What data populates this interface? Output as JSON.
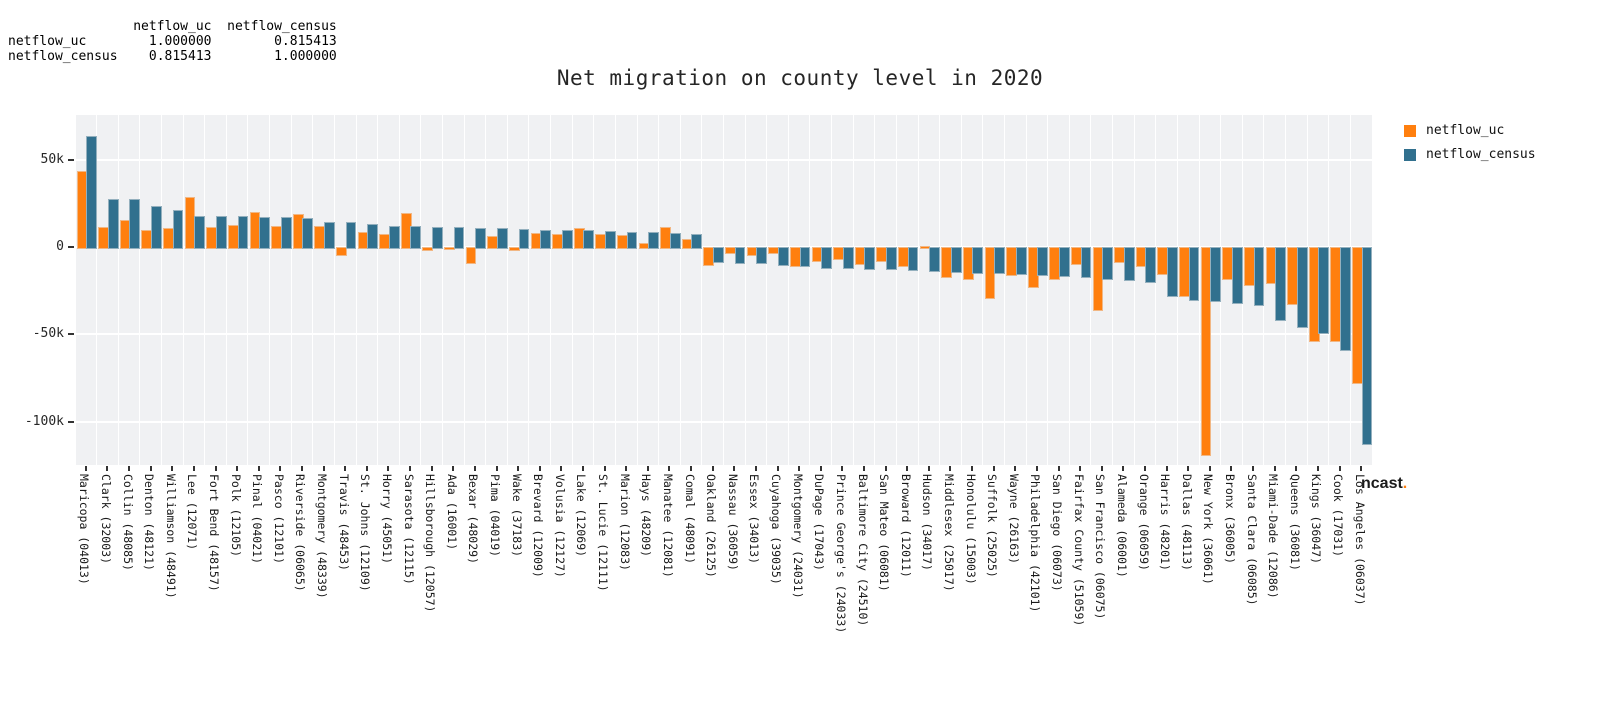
{
  "correlation_table": {
    "corner": "",
    "col_headers": [
      "netflow_uc",
      "netflow_census"
    ],
    "rows": [
      {
        "label": "netflow_uc",
        "values": [
          "1.000000",
          "0.815413"
        ]
      },
      {
        "label": "netflow_census",
        "values": [
          "0.815413",
          "1.000000"
        ]
      }
    ]
  },
  "chart_data": {
    "type": "bar",
    "title": "Net migration on county level in 2020",
    "xlabel": "",
    "ylabel": "",
    "grid": true,
    "legend_position": "upper right",
    "plot_bg": "#f0f1f3",
    "grid_color": "#ffffff",
    "ylim": [
      -125400,
      75900
    ],
    "yticks": [
      {
        "label": "50k",
        "value": 50000
      },
      {
        "label": "0",
        "value": 0
      },
      {
        "label": "-50k",
        "value": -50000
      },
      {
        "label": "-100k",
        "value": -100000
      }
    ],
    "categories": [
      "Maricopa (04013)",
      "Clark (32003)",
      "Collin (48085)",
      "Denton (48121)",
      "Williamson (48491)",
      "Lee (12071)",
      "Fort Bend (48157)",
      "Polk (12105)",
      "Pinal (04021)",
      "Pasco (12101)",
      "Riverside (06065)",
      "Montgomery (48339)",
      "Travis (48453)",
      "St. Johns (12109)",
      "Horry (45051)",
      "Sarasota (12115)",
      "Hillsborough (12057)",
      "Ada (16001)",
      "Bexar (48029)",
      "Pima (04019)",
      "Wake (37183)",
      "Brevard (12009)",
      "Volusia (12127)",
      "Lake (12069)",
      "St. Lucie (12111)",
      "Marion (12083)",
      "Hays (48209)",
      "Manatee (12081)",
      "Comal (48091)",
      "Oakland (26125)",
      "Nassau (36059)",
      "Essex (34013)",
      "Cuyahoga (39035)",
      "Montgomery (24031)",
      "DuPage (17043)",
      "Prince George's (24033)",
      "Baltimore City (24510)",
      "San Mateo (06081)",
      "Broward (12011)",
      "Hudson (34017)",
      "Middlesex (25017)",
      "Honolulu (15003)",
      "Suffolk (25025)",
      "Wayne (26163)",
      "Philadelphia (42101)",
      "San Diego (06073)",
      "Fairfax County (51059)",
      "San Francisco (06075)",
      "Alameda (06001)",
      "Orange (06059)",
      "Harris (48201)",
      "Dallas (48113)",
      "New York (36061)",
      "Bronx (36005)",
      "Santa Clara (06085)",
      "Miami-Dade (12086)",
      "Queens (36081)",
      "Kings (36047)",
      "Cook (17031)",
      "Los Angeles (06037)"
    ],
    "series": [
      {
        "name": "netflow_uc",
        "color": "#ff7f0e",
        "values": [
          43400,
          11300,
          15700,
          9600,
          11000,
          28600,
          11500,
          12500,
          20000,
          12000,
          18800,
          12200,
          -3800,
          8600,
          7300,
          19600,
          -1000,
          -600,
          -8600,
          6300,
          -1200,
          8200,
          7300,
          10900,
          7700,
          6700,
          2300,
          11500,
          4800,
          -10000,
          -2700,
          -4000,
          -3100,
          -10300,
          -7500,
          -6100,
          -9000,
          -7500,
          -10300,
          600,
          -16400,
          -18000,
          -28600,
          -15700,
          -22400,
          -18000,
          -9400,
          -35500,
          -8000,
          -10300,
          -15100,
          -27400,
          -118800,
          -17600,
          -20900,
          -19900,
          -32000,
          -53100,
          -53500,
          -77400
        ]
      },
      {
        "name": "netflow_census",
        "color": "#31708e",
        "values": [
          63300,
          27600,
          27200,
          23200,
          21300,
          18000,
          17800,
          17600,
          17200,
          17000,
          16800,
          14500,
          14200,
          13000,
          12000,
          11900,
          11700,
          11500,
          11000,
          10700,
          10500,
          10000,
          9900,
          9500,
          9400,
          8600,
          8500,
          8200,
          7700,
          -8200,
          -8600,
          -8800,
          -10000,
          -10200,
          -11300,
          -11700,
          -11900,
          -12300,
          -12700,
          -13200,
          -13800,
          -14100,
          -14300,
          -14800,
          -15500,
          -16000,
          -16600,
          -17900,
          -18500,
          -19400,
          -27200,
          -29500,
          -30100,
          -31400,
          -32700,
          -41400,
          -45400,
          -48700,
          -58300,
          -112000
        ]
      }
    ]
  },
  "watermark": {
    "text": "ncast",
    "dot": "."
  }
}
